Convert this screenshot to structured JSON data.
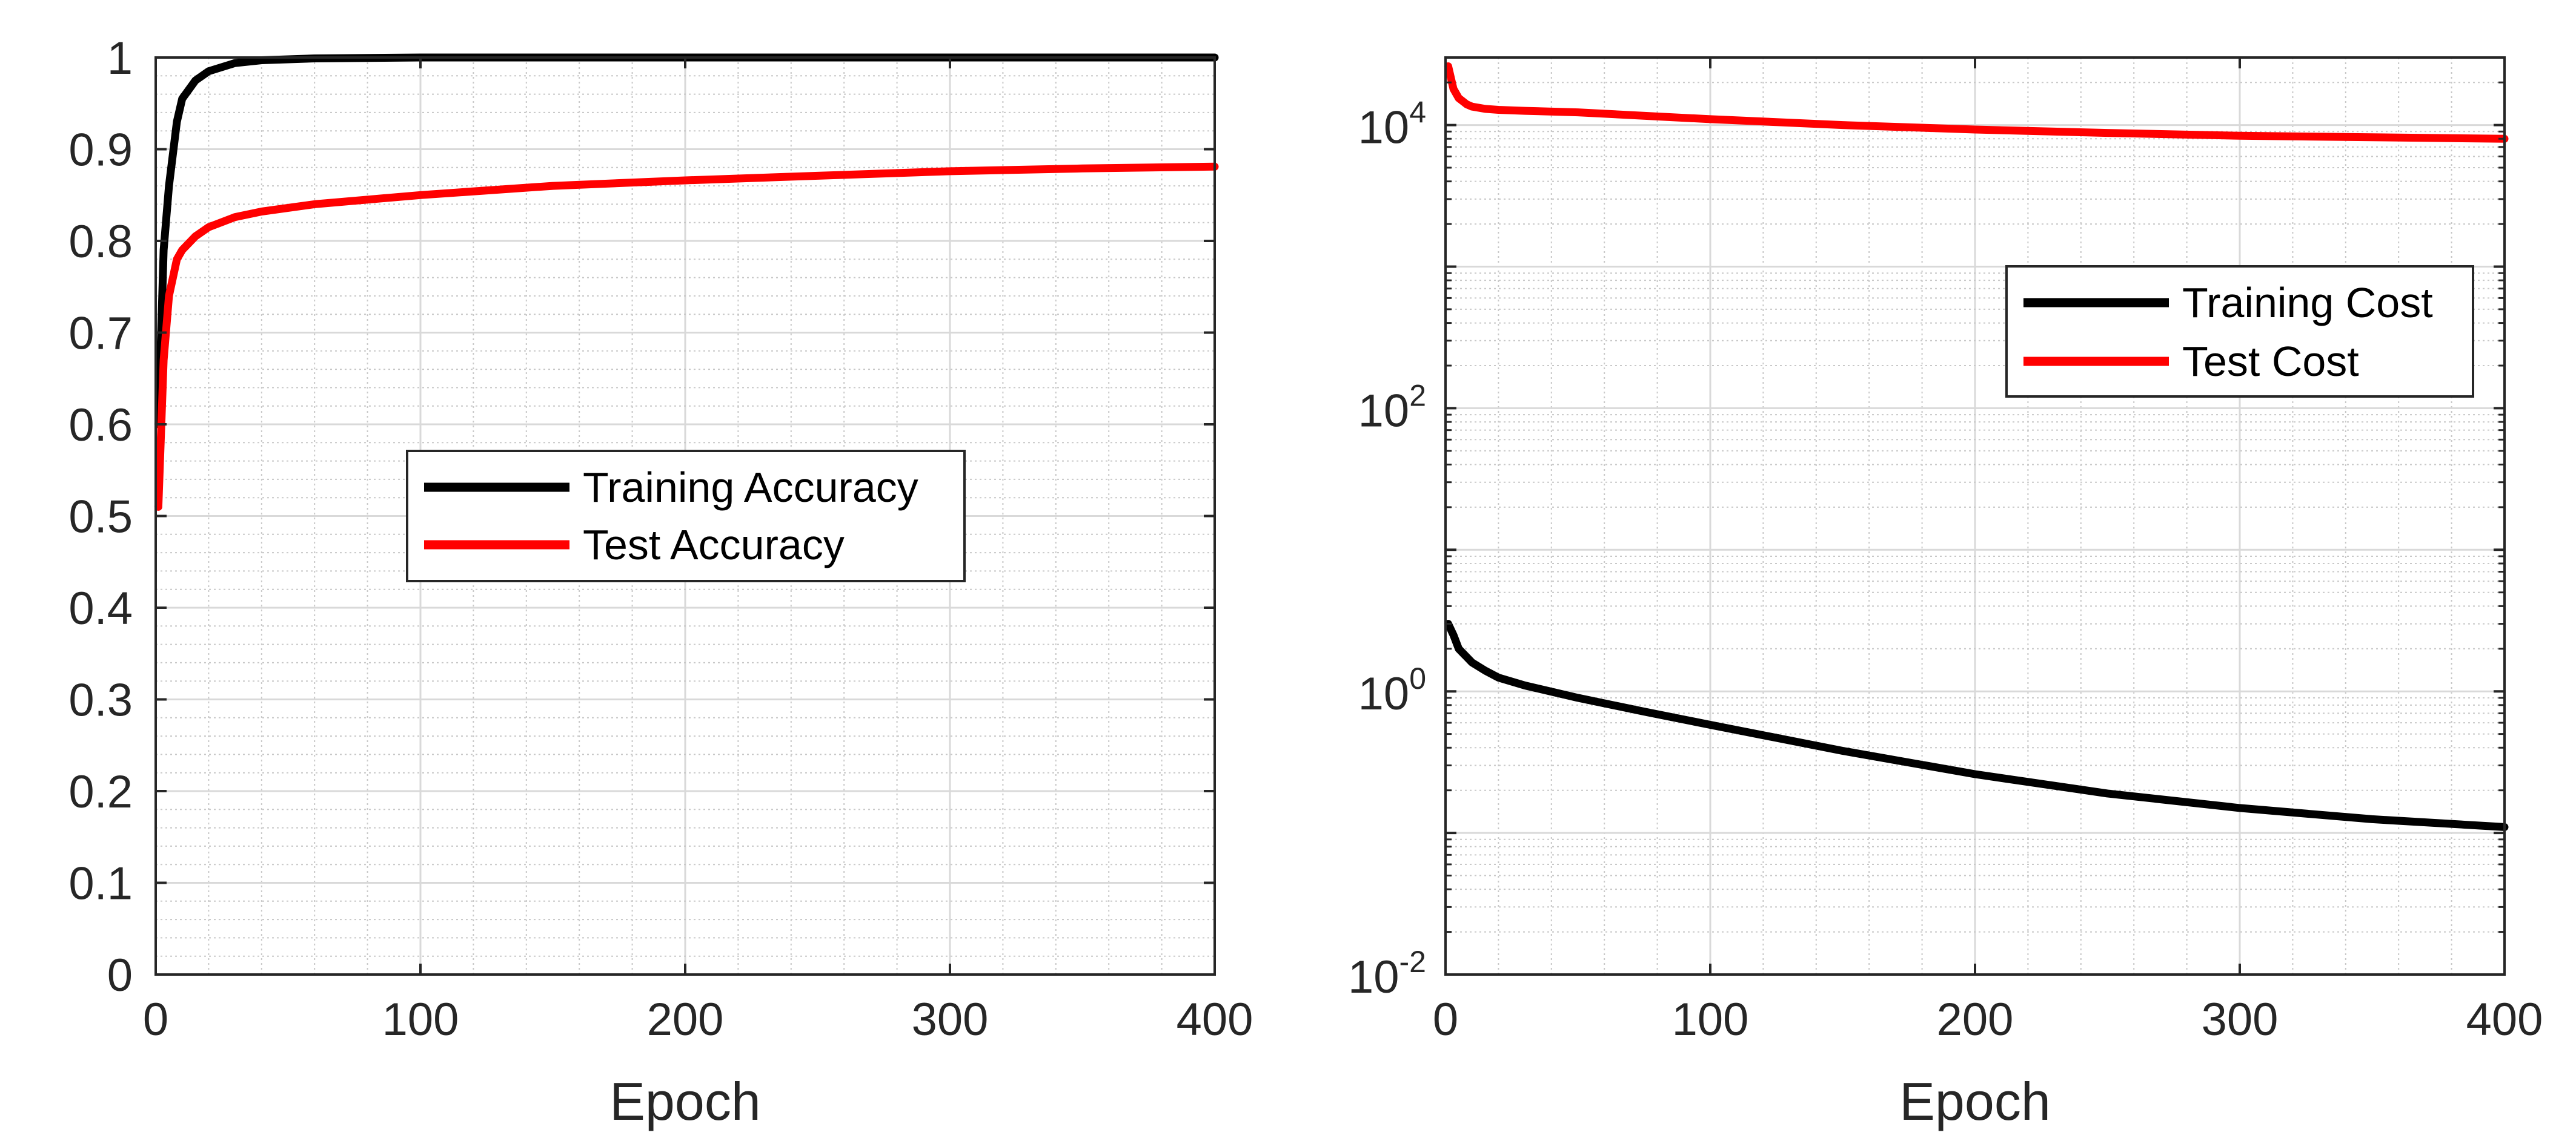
{
  "colors": {
    "training": "#000000",
    "test": "#ff0000",
    "grid_major": "#d9d9d9",
    "grid_minor": "#c8c8c8",
    "axis": "#262626"
  },
  "chart_data": [
    {
      "type": "line",
      "xlabel": "Epoch",
      "ylabel": "",
      "xlim": [
        0,
        400
      ],
      "ylim": [
        0,
        1
      ],
      "yscale": "linear",
      "grid": "on (major and minor)",
      "legend_position": "center-left",
      "xticks": [
        "0",
        "100",
        "200",
        "300",
        "400"
      ],
      "yticks": [
        "0",
        "0.1",
        "0.2",
        "0.3",
        "0.4",
        "0.5",
        "0.6",
        "0.7",
        "0.8",
        "0.9",
        "1"
      ],
      "series": [
        {
          "name": "Training Accuracy",
          "color": "#000000",
          "x": [
            1,
            3,
            5,
            8,
            10,
            15,
            20,
            30,
            40,
            60,
            100,
            200,
            300,
            400
          ],
          "y": [
            0.6,
            0.79,
            0.86,
            0.93,
            0.955,
            0.975,
            0.985,
            0.994,
            0.997,
            0.999,
            1.0,
            1.0,
            1.0,
            1.0
          ]
        },
        {
          "name": "Test Accuracy",
          "color": "#ff0000",
          "x": [
            1,
            3,
            5,
            8,
            10,
            15,
            20,
            30,
            40,
            60,
            80,
            100,
            150,
            200,
            250,
            300,
            350,
            400
          ],
          "y": [
            0.51,
            0.67,
            0.74,
            0.78,
            0.79,
            0.805,
            0.815,
            0.826,
            0.832,
            0.84,
            0.845,
            0.85,
            0.86,
            0.866,
            0.871,
            0.876,
            0.879,
            0.881
          ]
        }
      ]
    },
    {
      "type": "line",
      "xlabel": "Epoch",
      "ylabel": "",
      "xlim": [
        0,
        400
      ],
      "ylim": [
        0.01,
        30000
      ],
      "yscale": "log",
      "grid": "on (major and minor)",
      "legend_position": "upper-right",
      "xticks": [
        "0",
        "100",
        "200",
        "300",
        "400"
      ],
      "yticks": [
        {
          "base": "10",
          "exp": "-2"
        },
        {
          "base": "10",
          "exp": "0"
        },
        {
          "base": "10",
          "exp": "2"
        },
        {
          "base": "10",
          "exp": "4"
        }
      ],
      "series": [
        {
          "name": "Training Cost",
          "color": "#000000",
          "x": [
            1,
            3,
            5,
            10,
            15,
            20,
            30,
            50,
            75,
            100,
            150,
            200,
            250,
            300,
            350,
            400
          ],
          "y": [
            3.0,
            2.5,
            2.0,
            1.6,
            1.4,
            1.25,
            1.1,
            0.9,
            0.72,
            0.58,
            0.38,
            0.26,
            0.19,
            0.15,
            0.125,
            0.11
          ]
        },
        {
          "name": "Test Cost",
          "color": "#ff0000",
          "x": [
            1,
            3,
            5,
            8,
            10,
            15,
            20,
            30,
            50,
            100,
            150,
            200,
            250,
            300,
            350,
            400
          ],
          "y": [
            26000,
            18000,
            15500,
            14000,
            13500,
            13000,
            12800,
            12600,
            12300,
            11000,
            10000,
            9300,
            8800,
            8400,
            8200,
            8000
          ]
        }
      ]
    }
  ]
}
